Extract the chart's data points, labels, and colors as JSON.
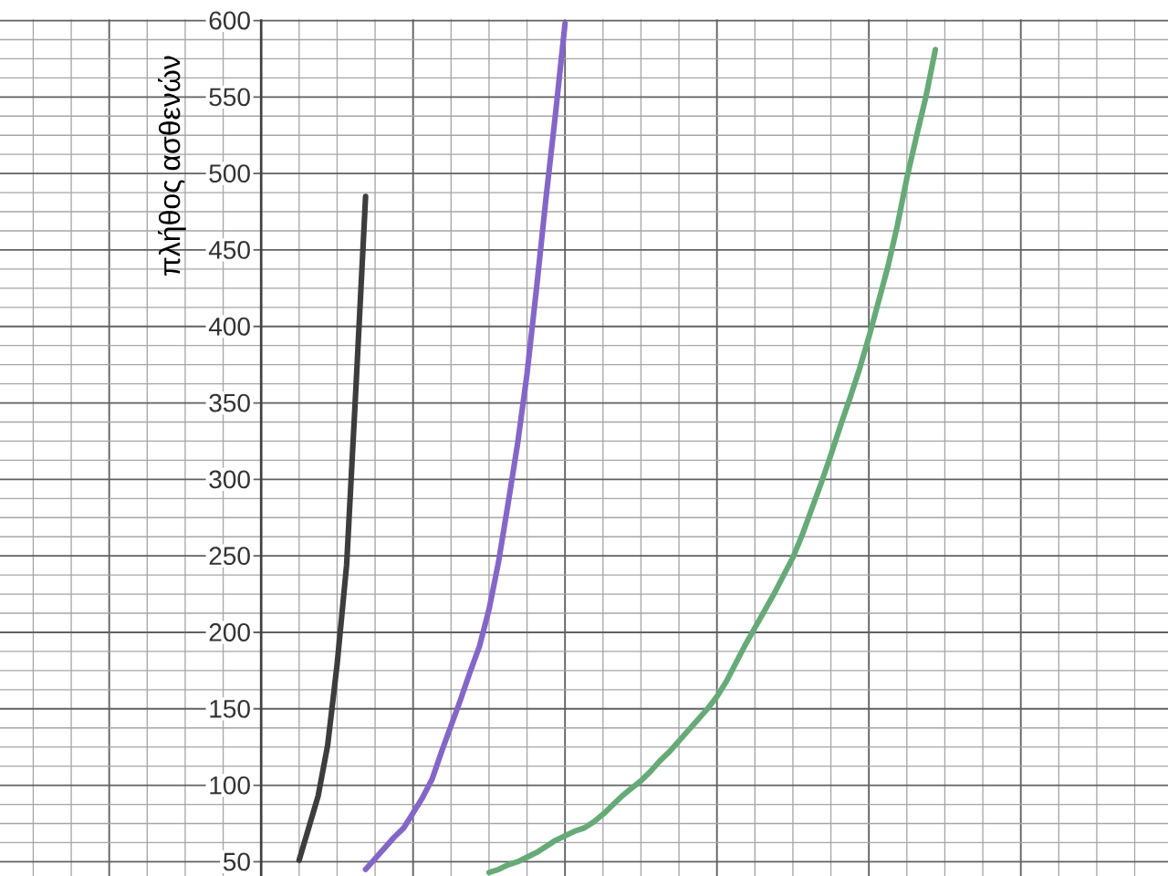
{
  "chart_data": {
    "type": "line",
    "ylabel": "πλήθος ασθενών",
    "categories": [
      null,
      null,
      null,
      null,
      null,
      null,
      null,
      null,
      null,
      null,
      null,
      null,
      null,
      null,
      null,
      null,
      null,
      null,
      null,
      null,
      null,
      null,
      null,
      null,
      null,
      null,
      null,
      null,
      null,
      null,
      null,
      null,
      null,
      null,
      null,
      null,
      null,
      null,
      null,
      null,
      null,
      null,
      null,
      null,
      null,
      null,
      null,
      null,
      null,
      null,
      null,
      null,
      null,
      null,
      null,
      null,
      null,
      null,
      null,
      null,
      null,
      null,
      null,
      null,
      null,
      null,
      null,
      null,
      null,
      null,
      null,
      null,
      null,
      null,
      null,
      null,
      null,
      null,
      null,
      null,
      null,
      null,
      null,
      null,
      null,
      null,
      null,
      null,
      null,
      null,
      null,
      null,
      null,
      null,
      null,
      null,
      null,
      null,
      null,
      null,
      null,
      null,
      null,
      null,
      null,
      null,
      null,
      null,
      null,
      null,
      null,
      null,
      null,
      null,
      null,
      null,
      null,
      null,
      null,
      null,
      null,
      null,
      null
    ],
    "series": [
      {
        "color": "#3d3d3d",
        "values": [
          null,
          null,
          null,
          null,
          null,
          null,
          null,
          null,
          null,
          null,
          null,
          null,
          null,
          null,
          null,
          null,
          null,
          null,
          null,
          null,
          null,
          null,
          null,
          null,
          null,
          null,
          null,
          null,
          null,
          null,
          null,
          51,
          72,
          93,
          126,
          179,
          244,
          362,
          485,
          null,
          null,
          null,
          null,
          null,
          null,
          null,
          null,
          null,
          null,
          null,
          null,
          null,
          null,
          null,
          null,
          null,
          null,
          null,
          null,
          null,
          null,
          null,
          null,
          null,
          null,
          null,
          null,
          null,
          null,
          null,
          null,
          null,
          null,
          null,
          null,
          null,
          null,
          null,
          null,
          null,
          null,
          null,
          null,
          null,
          null,
          null,
          null,
          null,
          null,
          null,
          null,
          null,
          null,
          null,
          null,
          null,
          null,
          null,
          null,
          null,
          null,
          null,
          null,
          null,
          null,
          null,
          null,
          null,
          null,
          null,
          null,
          null,
          null,
          null,
          null,
          null,
          null,
          null,
          null,
          null,
          null,
          null,
          null
        ]
      },
      {
        "color": "#8466c8",
        "values": [
          null,
          null,
          null,
          null,
          null,
          null,
          null,
          null,
          null,
          null,
          null,
          null,
          null,
          null,
          null,
          null,
          null,
          null,
          null,
          null,
          null,
          null,
          null,
          null,
          null,
          null,
          null,
          null,
          null,
          null,
          null,
          null,
          null,
          null,
          null,
          null,
          null,
          null,
          45,
          52,
          59,
          66,
          72,
          82,
          92,
          104,
          122,
          139,
          156,
          174,
          191,
          215,
          246,
          284,
          323,
          369,
          425,
          484,
          539,
          598,
          null,
          null,
          null,
          null,
          null,
          null,
          null,
          null,
          null,
          null,
          null,
          null,
          null,
          null,
          null,
          null,
          null,
          null,
          null,
          null,
          null,
          null,
          null,
          null,
          null,
          null,
          null,
          null,
          null,
          null,
          null,
          null,
          null,
          null,
          null,
          null,
          null,
          null,
          null,
          null,
          null,
          null,
          null,
          null,
          null,
          null,
          null,
          null,
          null,
          null,
          null,
          null,
          null,
          null,
          null,
          null,
          null,
          null,
          null,
          null,
          null,
          null,
          null
        ]
      },
      {
        "color": "#66aa77",
        "values": [
          null,
          null,
          null,
          null,
          null,
          null,
          null,
          null,
          null,
          null,
          null,
          null,
          null,
          null,
          null,
          null,
          null,
          null,
          null,
          null,
          null,
          null,
          null,
          null,
          null,
          null,
          null,
          null,
          null,
          null,
          null,
          null,
          null,
          null,
          null,
          null,
          null,
          null,
          null,
          null,
          null,
          null,
          null,
          null,
          null,
          null,
          null,
          null,
          null,
          null,
          null,
          43,
          45,
          48,
          50,
          53,
          56,
          60,
          64,
          67,
          70,
          72,
          76,
          81,
          87,
          93,
          98,
          103,
          109,
          116,
          122,
          129,
          136,
          143,
          150,
          158,
          168,
          180,
          192,
          203,
          214,
          225,
          237,
          249,
          264,
          281,
          298,
          316,
          335,
          353,
          372,
          393,
          416,
          439,
          466,
          497,
          524,
          550,
          581,
          null,
          null,
          null,
          null,
          null,
          null,
          null,
          null,
          null,
          null,
          null,
          null,
          null,
          null,
          null,
          null,
          null,
          null,
          null,
          null,
          null,
          null,
          null,
          null
        ]
      }
    ],
    "ylim": [
      40.7,
      600.7
    ],
    "yticks": [
      50,
      100,
      150,
      200,
      250,
      300,
      350,
      400,
      450,
      500,
      550,
      600
    ],
    "grid": true,
    "tick_labels": "y"
  }
}
